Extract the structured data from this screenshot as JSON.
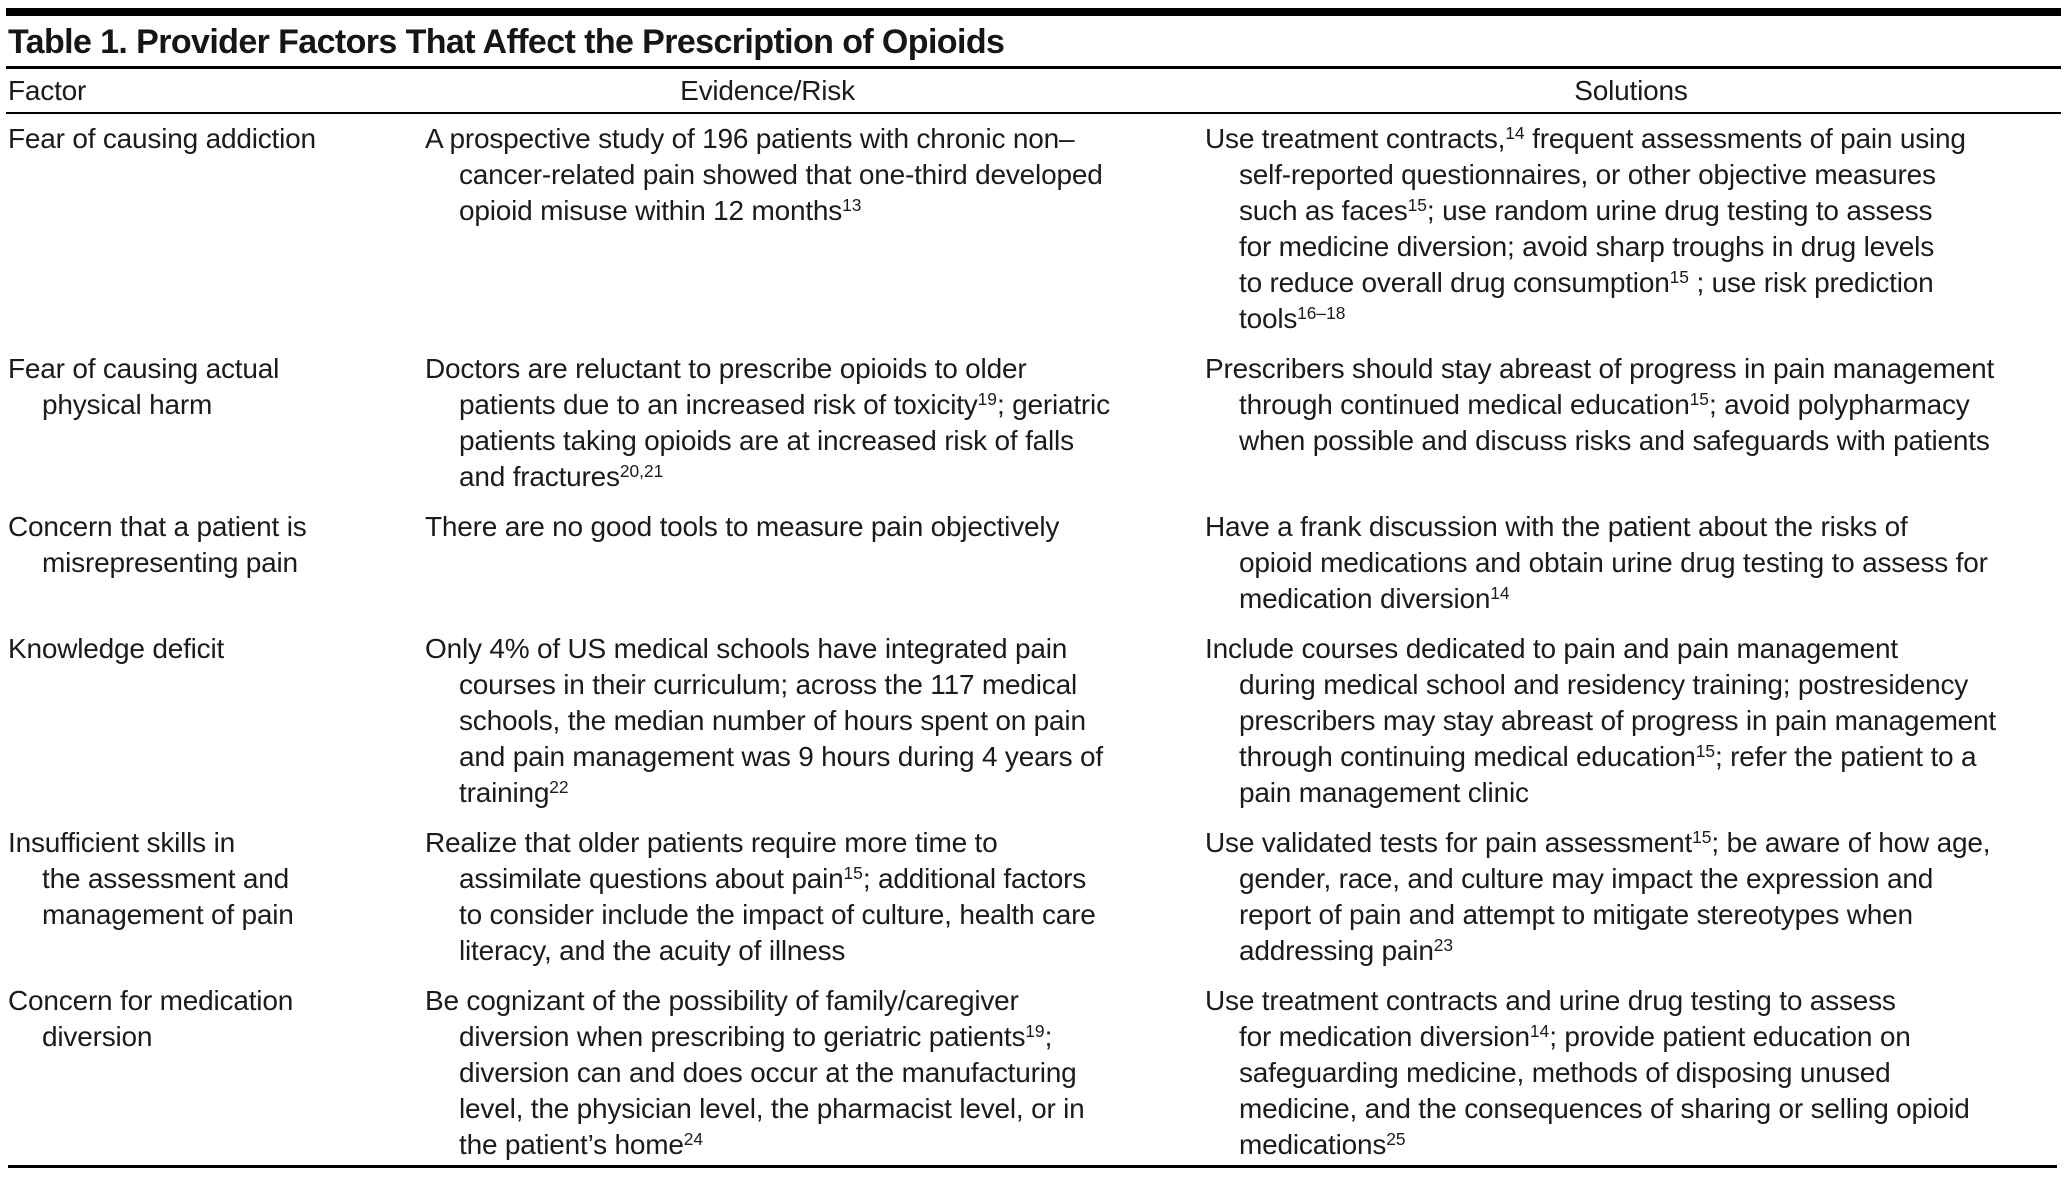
{
  "table": {
    "title": "Table 1. Provider Factors That Affect the Prescription of Opioids",
    "columns": [
      "Factor",
      "Evidence/Risk",
      "Solutions"
    ],
    "rows": [
      {
        "factor": [
          {
            "text": "Fear of causing addiction"
          }
        ],
        "evidence": [
          {
            "text": "A prospective study of 196 patients with chronic non–\ncancer-related pain showed that one-third developed\nopioid misuse within 12 months"
          },
          {
            "sup": "13"
          }
        ],
        "solutions": [
          {
            "text": "Use treatment contracts,"
          },
          {
            "sup": "14"
          },
          {
            "text": " frequent assessments of pain using\nself-reported questionnaires, or other objective measures\nsuch as faces"
          },
          {
            "sup": "15"
          },
          {
            "text": "; use random urine drug testing to assess\nfor medicine diversion; avoid sharp troughs in drug levels\nto reduce overall drug consumption"
          },
          {
            "sup": "15"
          },
          {
            "text": " ; use risk prediction\ntools"
          },
          {
            "sup": "16–18"
          }
        ]
      },
      {
        "factor": [
          {
            "text": "Fear of causing actual\nphysical harm"
          }
        ],
        "evidence": [
          {
            "text": "Doctors are reluctant to prescribe opioids to older\npatients due to an increased risk of toxicity"
          },
          {
            "sup": "19"
          },
          {
            "text": "; geriatric\npatients taking opioids are at increased risk of falls\nand fractures"
          },
          {
            "sup": "20,21"
          }
        ],
        "solutions": [
          {
            "text": "Prescribers should stay abreast of progress in pain management\nthrough continued medical education"
          },
          {
            "sup": "15"
          },
          {
            "text": "; avoid polypharmacy\nwhen possible and discuss risks and safeguards with patients"
          }
        ]
      },
      {
        "factor": [
          {
            "text": "Concern that a patient is\nmisrepresenting pain"
          }
        ],
        "evidence": [
          {
            "text": "There are no good tools to measure pain objectively"
          }
        ],
        "solutions": [
          {
            "text": "Have a frank discussion with the patient about the risks of\nopioid medications and obtain urine drug testing to assess for\nmedication diversion"
          },
          {
            "sup": "14"
          }
        ]
      },
      {
        "factor": [
          {
            "text": "Knowledge deficit"
          }
        ],
        "evidence": [
          {
            "text": "Only 4% of US medical schools have integrated pain\ncourses in their curriculum; across the 117 medical\nschools, the median number of hours spent on pain\nand pain management was 9 hours during 4 years of\ntraining"
          },
          {
            "sup": "22"
          }
        ],
        "solutions": [
          {
            "text": "Include courses dedicated to pain and pain management\nduring medical school and residency training; postresidency\nprescribers may stay abreast of progress in pain management\nthrough continuing medical education"
          },
          {
            "sup": "15"
          },
          {
            "text": "; refer the patient to a\npain management clinic"
          }
        ]
      },
      {
        "factor": [
          {
            "text": "Insufficient skills in\nthe assessment and\nmanagement of pain"
          }
        ],
        "evidence": [
          {
            "text": "Realize that older patients require more time to\nassimilate questions about pain"
          },
          {
            "sup": "15"
          },
          {
            "text": "; additional factors\nto consider include the impact of culture, health care\nliteracy, and the acuity of illness"
          }
        ],
        "solutions": [
          {
            "text": "Use validated tests for pain assessment"
          },
          {
            "sup": "15"
          },
          {
            "text": "; be aware of how age,\ngender, race, and culture may impact the expression and\nreport of pain and attempt to mitigate stereotypes when\naddressing pain"
          },
          {
            "sup": "23"
          }
        ]
      },
      {
        "factor": [
          {
            "text": "Concern for medication\ndiversion"
          }
        ],
        "evidence": [
          {
            "text": "Be cognizant of the possibility of family/caregiver\ndiversion when prescribing to geriatric patients"
          },
          {
            "sup": "19"
          },
          {
            "text": ";\ndiversion can and does occur at the manufacturing\nlevel, the physician level, the pharmacist level, or in\nthe patient’s home"
          },
          {
            "sup": "24"
          }
        ],
        "solutions": [
          {
            "text": "Use treatment contracts and urine drug testing to assess\nfor medication diversion"
          },
          {
            "sup": "14"
          },
          {
            "text": "; provide patient education on\nsafeguarding medicine, methods of disposing unused\nmedicine, and the consequences of sharing or selling opioid\nmedications"
          },
          {
            "sup": "25"
          }
        ]
      }
    ]
  }
}
